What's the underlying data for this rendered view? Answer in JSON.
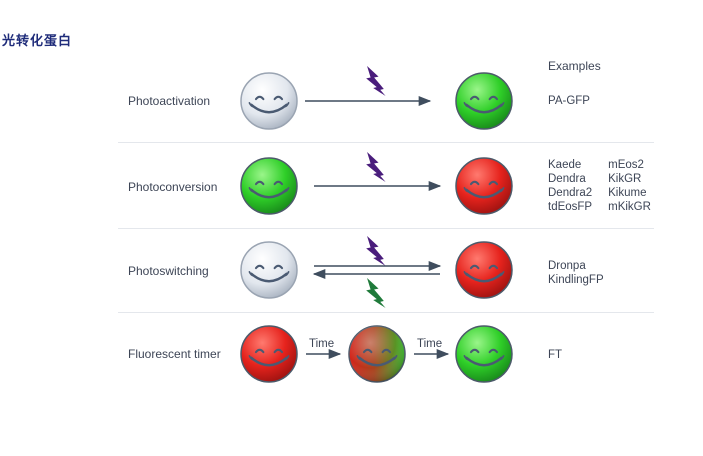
{
  "title": "光转化蛋白",
  "examples_header": "Examples",
  "rows": [
    {
      "label": "Photoactivation",
      "from_state": "gray",
      "to_state": "green",
      "light": [
        "violet"
      ],
      "examples_columns": [
        [
          "PA-GFP"
        ]
      ]
    },
    {
      "label": "Photoconversion",
      "from_state": "green",
      "to_state": "red",
      "light": [
        "violet"
      ],
      "examples_columns": [
        [
          "Kaede",
          "Dendra",
          "Dendra2",
          "tdEosFP"
        ],
        [
          "mEos2",
          "KikGR",
          "Kikume",
          "mKikGR"
        ]
      ]
    },
    {
      "label": "Photoswitching",
      "from_state": "gray",
      "to_state": "red",
      "light": [
        "violet",
        "green"
      ],
      "reversible": true,
      "examples_columns": [
        [
          "Dronpa",
          "KindlingFP"
        ]
      ]
    },
    {
      "label": "Fluorescent timer",
      "states": [
        "red",
        "red-green",
        "green"
      ],
      "transition_label": "Time",
      "examples_columns": [
        [
          "FT"
        ]
      ]
    }
  ],
  "colors": {
    "gray": "#e9edf3",
    "green": "#2fcf28",
    "red": "#e6231d",
    "violet": "#4a1d7c",
    "lightning_green": "#1f7a3a",
    "arrow": "#3f4d5e",
    "smile": "#4a5a72"
  },
  "icons": [
    "smiley-face-icon",
    "lightning-bolt-icon",
    "arrow-right-icon",
    "arrow-left-icon"
  ]
}
